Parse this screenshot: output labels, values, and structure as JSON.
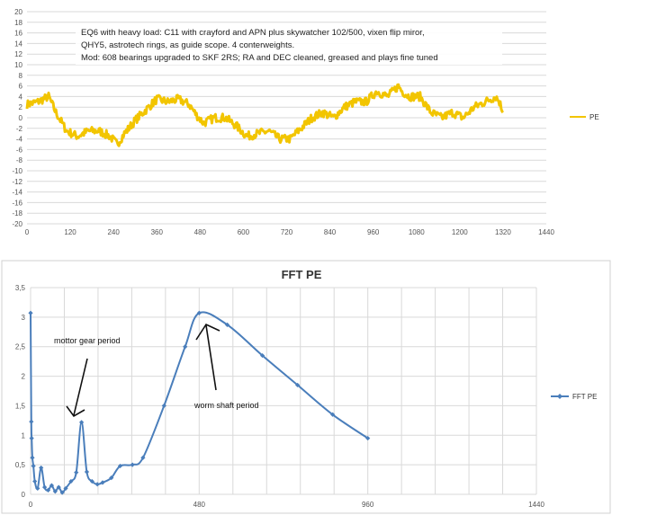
{
  "chart_data": [
    {
      "type": "line",
      "title": "",
      "annotation_lines": [
        "EQ6 with heavy load: C11 with crayford and APN plus skywatcher 102/500, vixen flip miror,",
        "QHY5, astrotech rings, as guide scope. 4 conterweights.",
        "Mod: 608 bearings upgraded to SKF 2RS; RA and DEC cleaned, greased and plays fine tuned"
      ],
      "xlim": [
        0,
        1440
      ],
      "ylim": [
        -20,
        20
      ],
      "xticks": [
        0,
        120,
        240,
        360,
        480,
        600,
        720,
        840,
        960,
        1080,
        1200,
        1320,
        1440
      ],
      "yticks": [
        20,
        18,
        16,
        14,
        12,
        10,
        8,
        6,
        4,
        2,
        0,
        -2,
        -4,
        -6,
        -8,
        -10,
        -12,
        -14,
        -16,
        -18,
        -20
      ],
      "series": [
        {
          "name": "PE",
          "color": "#f2c500",
          "x": [
            0,
            30,
            60,
            80,
            110,
            140,
            170,
            200,
            230,
            250,
            270,
            300,
            330,
            360,
            390,
            420,
            450,
            470,
            490,
            520,
            550,
            580,
            610,
            640,
            670,
            700,
            730,
            760,
            790,
            820,
            850,
            880,
            910,
            940,
            970,
            1000,
            1030,
            1040,
            1060,
            1090,
            1120,
            1150,
            1180,
            1210,
            1240,
            1270,
            1300,
            1310,
            1320
          ],
          "y": [
            2.5,
            3,
            4,
            1,
            -2.5,
            -3.5,
            -2.5,
            -2.5,
            -3.5,
            -5,
            -3,
            -0.5,
            1.5,
            3.5,
            3,
            3.5,
            2.5,
            0.5,
            -1,
            0,
            0,
            -1.5,
            -3.5,
            -3,
            -2.5,
            -4,
            -4,
            -2,
            0,
            1,
            0,
            2,
            3,
            3,
            5,
            4,
            6,
            5,
            4,
            4,
            1,
            0,
            1,
            0,
            2,
            3,
            4,
            3,
            1
          ]
        }
      ]
    },
    {
      "type": "scatter",
      "title": "FFT PE",
      "xlim": [
        0,
        1440
      ],
      "ylim": [
        0,
        3.5
      ],
      "xticks": [
        0,
        480,
        960,
        1440
      ],
      "yticks": [
        "3,5",
        "3",
        "2,5",
        "2",
        "1,5",
        "1",
        "0,5",
        "0"
      ],
      "series": [
        {
          "name": "FFT PE",
          "color": "#4a7ebb",
          "x": [
            0,
            2,
            3,
            5,
            8,
            12,
            20,
            30,
            40,
            50,
            60,
            70,
            80,
            90,
            100,
            115,
            130,
            145,
            160,
            175,
            190,
            205,
            230,
            255,
            290,
            320,
            380,
            440,
            480,
            560,
            660,
            760,
            860,
            960
          ],
          "y": [
            3.07,
            1.23,
            0.95,
            0.62,
            0.48,
            0.22,
            0.1,
            0.45,
            0.12,
            0.07,
            0.15,
            0.05,
            0.12,
            0.03,
            0.1,
            0.22,
            0.37,
            1.22,
            0.38,
            0.22,
            0.17,
            0.2,
            0.28,
            0.48,
            0.5,
            0.62,
            1.5,
            2.5,
            3.07,
            2.87,
            2.35,
            1.85,
            1.35,
            0.95
          ]
        }
      ],
      "annotations": [
        {
          "text": "mottor gear period",
          "points_to": [
            120,
            1.22
          ]
        },
        {
          "text": "worm shaft period",
          "points_to": [
            480,
            3.07
          ]
        }
      ]
    }
  ]
}
